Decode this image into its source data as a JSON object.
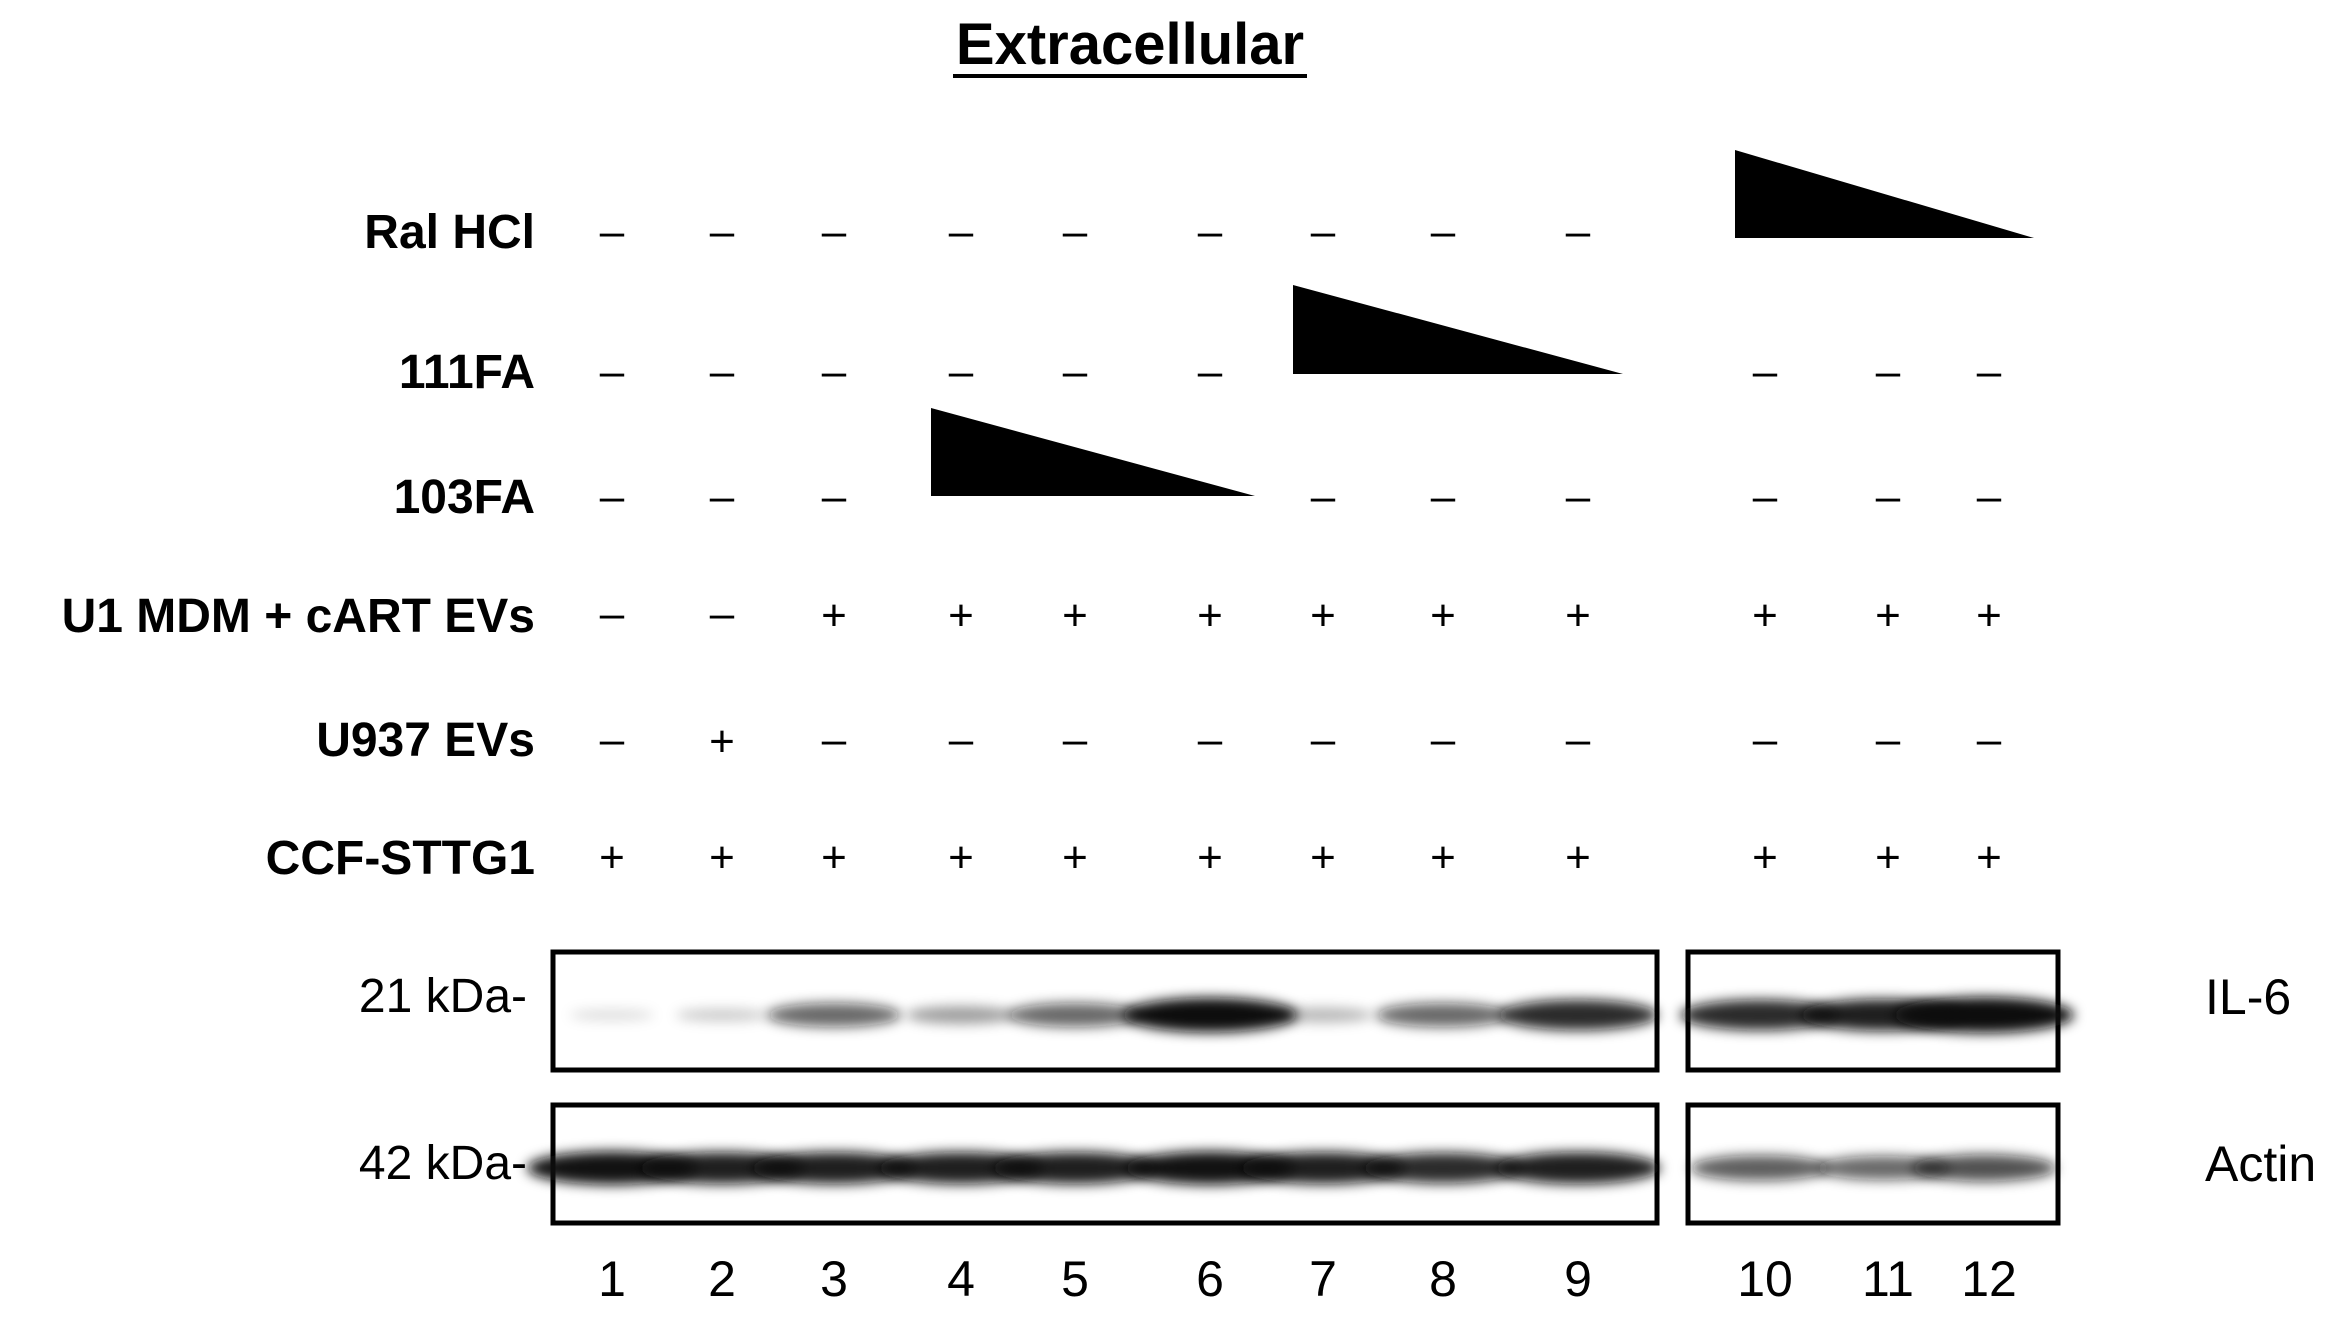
{
  "title": "Extracellular",
  "lanes": [
    "1",
    "2",
    "3",
    "4",
    "5",
    "6",
    "7",
    "8",
    "9",
    "10",
    "11",
    "12"
  ],
  "treatments": [
    {
      "label": "Ral HCl",
      "signs": [
        "–",
        "–",
        "–",
        "–",
        "–",
        "–",
        "–",
        "–",
        "–",
        "",
        "",
        ""
      ],
      "gradient_lanes": [
        10,
        12
      ]
    },
    {
      "label": "111FA",
      "signs": [
        "–",
        "–",
        "–",
        "–",
        "–",
        "–",
        "",
        "",
        "",
        "–",
        "–",
        "–"
      ],
      "gradient_lanes": [
        7,
        9
      ]
    },
    {
      "label": "103FA",
      "signs": [
        "–",
        "–",
        "–",
        "",
        "",
        "",
        "–",
        "–",
        "–",
        "–",
        "–",
        "–"
      ],
      "gradient_lanes": [
        4,
        6
      ]
    },
    {
      "label": "U1 MDM + cART EVs",
      "signs": [
        "–",
        "–",
        "+",
        "+",
        "+",
        "+",
        "+",
        "+",
        "+",
        "+",
        "+",
        "+"
      ]
    },
    {
      "label": "U937 EVs",
      "signs": [
        "–",
        "+",
        "–",
        "–",
        "–",
        "–",
        "–",
        "–",
        "–",
        "–",
        "–",
        "–"
      ]
    },
    {
      "label": "CCF-STTG1",
      "signs": [
        "+",
        "+",
        "+",
        "+",
        "+",
        "+",
        "+",
        "+",
        "+",
        "+",
        "+",
        "+"
      ]
    }
  ],
  "blots": [
    {
      "protein": "IL-6",
      "marker": "21 kDa-",
      "band_intensity": [
        0.05,
        0.12,
        0.55,
        0.3,
        0.55,
        0.95,
        0.2,
        0.55,
        0.8,
        0.8,
        0.85,
        1.0
      ]
    },
    {
      "protein": "Actin",
      "marker": "42 kDa-",
      "band_intensity": [
        0.9,
        0.85,
        0.85,
        0.85,
        0.85,
        0.9,
        0.85,
        0.8,
        0.85,
        0.6,
        0.55,
        0.65
      ]
    }
  ],
  "colors": {
    "ink": "#000000",
    "band": "#111111"
  }
}
